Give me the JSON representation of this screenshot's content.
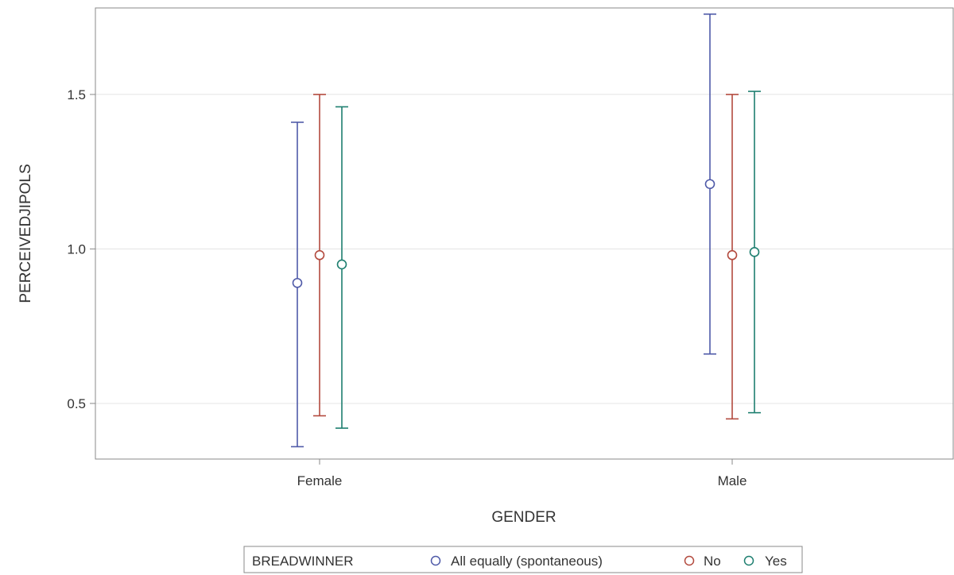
{
  "chart_data": {
    "type": "scatter",
    "subtype": "mean-with-error-bars",
    "xlabel": "GENDER",
    "ylabel": "PERCEIVEDJIPOLS",
    "categories": [
      "Female",
      "Male"
    ],
    "ylim": [
      0.32,
      1.78
    ],
    "yticks": [
      0.5,
      1.0,
      1.5
    ],
    "ytick_labels": [
      "0.5",
      "1.0",
      "1.5"
    ],
    "grid": "horizontal",
    "legend": {
      "title": "BREADWINNER",
      "placement": "bottom"
    },
    "series": [
      {
        "name": "All equally (spontaneous)",
        "color": "#4F5AA8",
        "values": [
          0.89,
          1.21
        ],
        "lower": [
          0.36,
          0.66
        ],
        "upper": [
          1.41,
          1.76
        ]
      },
      {
        "name": "No",
        "color": "#B34A3E",
        "values": [
          0.98,
          0.98
        ],
        "lower": [
          0.46,
          0.45
        ],
        "upper": [
          1.5,
          1.5
        ]
      },
      {
        "name": "Yes",
        "color": "#1E7F70",
        "values": [
          0.95,
          0.99
        ],
        "lower": [
          0.42,
          0.47
        ],
        "upper": [
          1.46,
          1.51
        ]
      }
    ]
  }
}
